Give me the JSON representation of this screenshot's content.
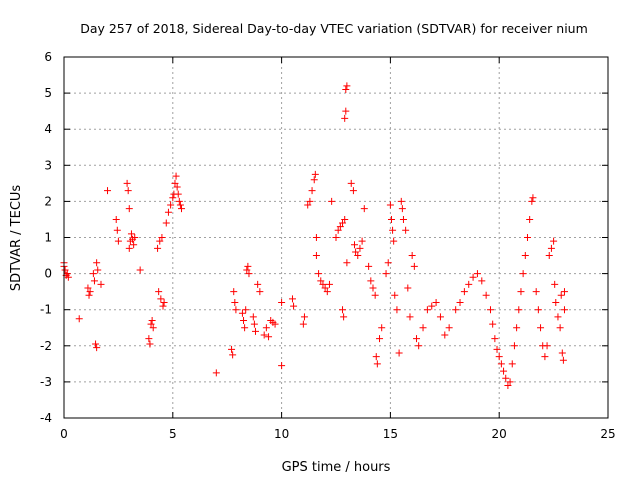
{
  "chart_data": {
    "type": "scatter",
    "title": "Day 257 of 2018, Sidereal Day-to-day VTEC variation (SDTVAR) for receiver nium",
    "xlabel": "GPS time / hours",
    "ylabel": "SDTVAR / TECUs",
    "xlim": [
      0,
      25
    ],
    "ylim": [
      -4,
      6
    ],
    "xticks": [
      0,
      5,
      10,
      15,
      20,
      25
    ],
    "yticks": [
      -4,
      -3,
      -2,
      -1,
      0,
      1,
      2,
      3,
      4,
      5,
      6
    ],
    "grid": true,
    "marker": "+",
    "series_color": "#ff0000",
    "series": [
      {
        "name": "SDTVAR",
        "points": [
          [
            0.0,
            0.3
          ],
          [
            0.05,
            0.1
          ],
          [
            0.1,
            -0.05
          ],
          [
            0.15,
            0.0
          ],
          [
            0.2,
            -0.1
          ],
          [
            0.0,
            0.2
          ],
          [
            0.7,
            -1.25
          ],
          [
            1.1,
            -0.4
          ],
          [
            1.15,
            -0.6
          ],
          [
            1.2,
            -0.5
          ],
          [
            1.35,
            0.0
          ],
          [
            1.4,
            -0.2
          ],
          [
            1.45,
            -1.95
          ],
          [
            1.5,
            -2.05
          ],
          [
            1.5,
            0.3
          ],
          [
            1.55,
            0.1
          ],
          [
            1.7,
            -0.3
          ],
          [
            2.0,
            2.3
          ],
          [
            2.4,
            1.5
          ],
          [
            2.45,
            1.2
          ],
          [
            2.5,
            0.9
          ],
          [
            2.9,
            2.5
          ],
          [
            2.95,
            2.3
          ],
          [
            3.0,
            1.8
          ],
          [
            3.0,
            0.7
          ],
          [
            3.05,
            0.9
          ],
          [
            3.1,
            1.1
          ],
          [
            3.15,
            0.95
          ],
          [
            3.2,
            0.8
          ],
          [
            3.25,
            1.0
          ],
          [
            3.5,
            0.1
          ],
          [
            3.9,
            -1.8
          ],
          [
            3.95,
            -1.95
          ],
          [
            4.0,
            -1.4
          ],
          [
            4.05,
            -1.3
          ],
          [
            4.1,
            -1.5
          ],
          [
            4.3,
            0.7
          ],
          [
            4.4,
            0.9
          ],
          [
            4.5,
            1.0
          ],
          [
            4.35,
            -0.5
          ],
          [
            4.45,
            -0.7
          ],
          [
            4.55,
            -0.9
          ],
          [
            4.6,
            -0.8
          ],
          [
            4.7,
            1.4
          ],
          [
            4.8,
            1.7
          ],
          [
            4.9,
            1.9
          ],
          [
            5.0,
            2.1
          ],
          [
            5.05,
            2.2
          ],
          [
            5.1,
            2.5
          ],
          [
            5.15,
            2.7
          ],
          [
            5.2,
            2.4
          ],
          [
            5.25,
            2.2
          ],
          [
            5.3,
            2.0
          ],
          [
            5.35,
            1.9
          ],
          [
            5.4,
            1.8
          ],
          [
            7.0,
            -2.75
          ],
          [
            7.7,
            -2.1
          ],
          [
            7.75,
            -2.25
          ],
          [
            7.8,
            -0.5
          ],
          [
            7.85,
            -0.8
          ],
          [
            7.9,
            -1.0
          ],
          [
            8.2,
            -1.1
          ],
          [
            8.25,
            -1.3
          ],
          [
            8.3,
            -1.5
          ],
          [
            8.35,
            -1.0
          ],
          [
            8.4,
            0.1
          ],
          [
            8.45,
            0.2
          ],
          [
            8.5,
            0.0
          ],
          [
            8.7,
            -1.2
          ],
          [
            8.75,
            -1.4
          ],
          [
            8.8,
            -1.6
          ],
          [
            8.9,
            -0.3
          ],
          [
            9.0,
            -0.5
          ],
          [
            9.2,
            -1.7
          ],
          [
            9.3,
            -1.5
          ],
          [
            9.4,
            -1.75
          ],
          [
            9.5,
            -1.3
          ],
          [
            9.6,
            -1.35
          ],
          [
            9.7,
            -1.4
          ],
          [
            10.0,
            -2.55
          ],
          [
            10.0,
            -0.8
          ],
          [
            10.5,
            -0.7
          ],
          [
            10.55,
            -0.9
          ],
          [
            11.0,
            -1.4
          ],
          [
            11.05,
            -1.2
          ],
          [
            11.2,
            1.9
          ],
          [
            11.3,
            2.0
          ],
          [
            11.4,
            2.3
          ],
          [
            11.5,
            2.6
          ],
          [
            11.55,
            2.75
          ],
          [
            11.6,
            1.0
          ],
          [
            11.6,
            0.5
          ],
          [
            11.7,
            0.0
          ],
          [
            11.8,
            -0.2
          ],
          [
            11.9,
            -0.3
          ],
          [
            12.0,
            -0.4
          ],
          [
            12.1,
            -0.5
          ],
          [
            12.2,
            -0.3
          ],
          [
            12.3,
            2.0
          ],
          [
            12.5,
            1.0
          ],
          [
            12.6,
            1.2
          ],
          [
            12.7,
            1.3
          ],
          [
            12.8,
            1.4
          ],
          [
            12.9,
            1.5
          ],
          [
            12.9,
            4.3
          ],
          [
            12.95,
            4.5
          ],
          [
            12.95,
            5.1
          ],
          [
            13.0,
            5.2
          ],
          [
            13.0,
            0.3
          ],
          [
            12.8,
            -1.0
          ],
          [
            12.85,
            -1.2
          ],
          [
            13.2,
            2.5
          ],
          [
            13.3,
            2.3
          ],
          [
            13.35,
            0.8
          ],
          [
            13.4,
            0.6
          ],
          [
            13.5,
            0.5
          ],
          [
            13.6,
            0.7
          ],
          [
            13.7,
            0.9
          ],
          [
            13.8,
            1.8
          ],
          [
            14.0,
            0.2
          ],
          [
            14.1,
            -0.2
          ],
          [
            14.2,
            -0.4
          ],
          [
            14.3,
            -0.6
          ],
          [
            14.35,
            -2.3
          ],
          [
            14.4,
            -2.5
          ],
          [
            14.5,
            -1.8
          ],
          [
            14.6,
            -1.5
          ],
          [
            14.8,
            0.0
          ],
          [
            14.9,
            0.3
          ],
          [
            15.0,
            1.9
          ],
          [
            15.05,
            1.5
          ],
          [
            15.1,
            1.2
          ],
          [
            15.15,
            0.9
          ],
          [
            15.2,
            -0.6
          ],
          [
            15.3,
            -1.0
          ],
          [
            15.4,
            -2.2
          ],
          [
            15.5,
            2.0
          ],
          [
            15.55,
            1.8
          ],
          [
            15.6,
            1.5
          ],
          [
            15.7,
            1.2
          ],
          [
            15.8,
            -0.4
          ],
          [
            15.9,
            -1.2
          ],
          [
            16.0,
            0.5
          ],
          [
            16.1,
            0.2
          ],
          [
            16.2,
            -1.8
          ],
          [
            16.3,
            -2.0
          ],
          [
            16.5,
            -1.5
          ],
          [
            16.7,
            -1.0
          ],
          [
            16.9,
            -0.9
          ],
          [
            17.1,
            -0.8
          ],
          [
            17.3,
            -1.2
          ],
          [
            17.5,
            -1.7
          ],
          [
            17.7,
            -1.5
          ],
          [
            18.0,
            -1.0
          ],
          [
            18.2,
            -0.8
          ],
          [
            18.4,
            -0.5
          ],
          [
            18.6,
            -0.3
          ],
          [
            18.8,
            -0.1
          ],
          [
            19.0,
            0.0
          ],
          [
            19.2,
            -0.2
          ],
          [
            19.4,
            -0.6
          ],
          [
            19.6,
            -1.0
          ],
          [
            19.7,
            -1.4
          ],
          [
            19.8,
            -1.8
          ],
          [
            19.9,
            -2.1
          ],
          [
            20.0,
            -2.3
          ],
          [
            20.1,
            -2.5
          ],
          [
            20.2,
            -2.7
          ],
          [
            20.3,
            -2.9
          ],
          [
            20.4,
            -3.1
          ],
          [
            20.5,
            -3.0
          ],
          [
            20.6,
            -2.5
          ],
          [
            20.7,
            -2.0
          ],
          [
            20.8,
            -1.5
          ],
          [
            20.9,
            -1.0
          ],
          [
            21.0,
            -0.5
          ],
          [
            21.1,
            0.0
          ],
          [
            21.2,
            0.5
          ],
          [
            21.3,
            1.0
          ],
          [
            21.4,
            1.5
          ],
          [
            21.5,
            2.0
          ],
          [
            21.55,
            2.1
          ],
          [
            21.7,
            -0.5
          ],
          [
            21.8,
            -1.0
          ],
          [
            21.9,
            -1.5
          ],
          [
            22.0,
            -2.0
          ],
          [
            22.1,
            -2.3
          ],
          [
            22.2,
            -2.0
          ],
          [
            22.3,
            0.5
          ],
          [
            22.4,
            0.7
          ],
          [
            22.5,
            0.9
          ],
          [
            22.55,
            -0.3
          ],
          [
            22.6,
            -0.8
          ],
          [
            22.7,
            -1.2
          ],
          [
            22.8,
            -1.5
          ],
          [
            22.85,
            -0.6
          ],
          [
            22.9,
            -2.2
          ],
          [
            22.95,
            -2.4
          ],
          [
            23.0,
            -1.0
          ],
          [
            23.0,
            -0.5
          ]
        ]
      }
    ]
  }
}
